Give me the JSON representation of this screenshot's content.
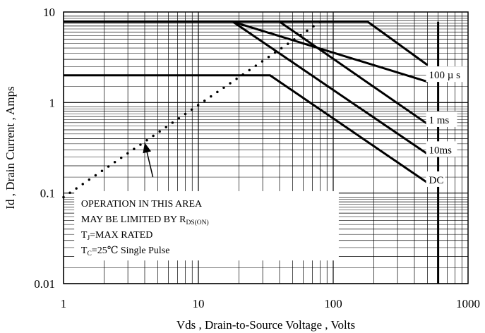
{
  "chart_data": {
    "type": "line",
    "title": "",
    "xlabel": "Vds , Drain-to-Source Voltage , Volts",
    "ylabel": "Id , Drain Current , Amps",
    "xscale": "log",
    "yscale": "log",
    "xlim": [
      1,
      1000
    ],
    "ylim": [
      0.01,
      10
    ],
    "grid": true,
    "x_ticks": [
      {
        "value": 1,
        "label": "1"
      },
      {
        "value": 10,
        "label": "10"
      },
      {
        "value": 100,
        "label": "100"
      },
      {
        "value": 1000,
        "label": "1000"
      }
    ],
    "y_ticks": [
      {
        "value": 0.01,
        "label": "0.01"
      },
      {
        "value": 0.1,
        "label": "0.1"
      },
      {
        "value": 1,
        "label": "1"
      },
      {
        "value": 10,
        "label": "10"
      }
    ],
    "series": [
      {
        "name": "100 µ s",
        "style": "solid",
        "points": [
          [
            1,
            7.8
          ],
          [
            18,
            7.8
          ],
          [
            500,
            1.7
          ]
        ]
      },
      {
        "name": "1 ms",
        "style": "solid",
        "points": [
          [
            1,
            7.8
          ],
          [
            40,
            7.8
          ],
          [
            500,
            0.58
          ]
        ]
      },
      {
        "name": "10ms",
        "style": "solid",
        "points": [
          [
            40,
            7.8
          ],
          [
            180,
            7.8
          ],
          [
            500,
            2.6
          ]
        ]
      },
      {
        "name": "10ms",
        "style": "solid",
        "points": [
          [
            18,
            7.8
          ],
          [
            500,
            0.27
          ]
        ]
      },
      {
        "name": "DC",
        "style": "solid",
        "points": [
          [
            1,
            2.0
          ],
          [
            34,
            2.0
          ],
          [
            500,
            0.13
          ]
        ]
      },
      {
        "name": "",
        "style": "dotted",
        "points": [
          [
            1,
            0.09
          ],
          [
            80,
            7.8
          ]
        ]
      },
      {
        "name": "",
        "style": "solid",
        "points": [
          [
            600,
            0.01
          ],
          [
            600,
            7.8
          ]
        ]
      }
    ],
    "annotation": {
      "lines": [
        {
          "text": "OPERATION IN THIS AREA",
          "sub": ""
        },
        {
          "text": "MAY BE LIMITED BY R",
          "sub": "DS(ON)"
        },
        {
          "text": "T",
          "sub": "J",
          "rest": "=MAX RATED"
        },
        {
          "text": "T",
          "sub": "C",
          "rest": "=25℃  Single Pulse"
        }
      ],
      "arrow_to": [
        4,
        0.36
      ],
      "arrow_from": [
        4.6,
        0.15
      ]
    },
    "curve_labels": [
      {
        "text": "100 µ s",
        "at": [
          500,
          1.95
        ]
      },
      {
        "text": "1 ms",
        "at": [
          500,
          0.62
        ]
      },
      {
        "text": "10ms",
        "at": [
          500,
          0.29
        ]
      },
      {
        "text": "DC",
        "at": [
          500,
          0.135
        ]
      }
    ]
  }
}
